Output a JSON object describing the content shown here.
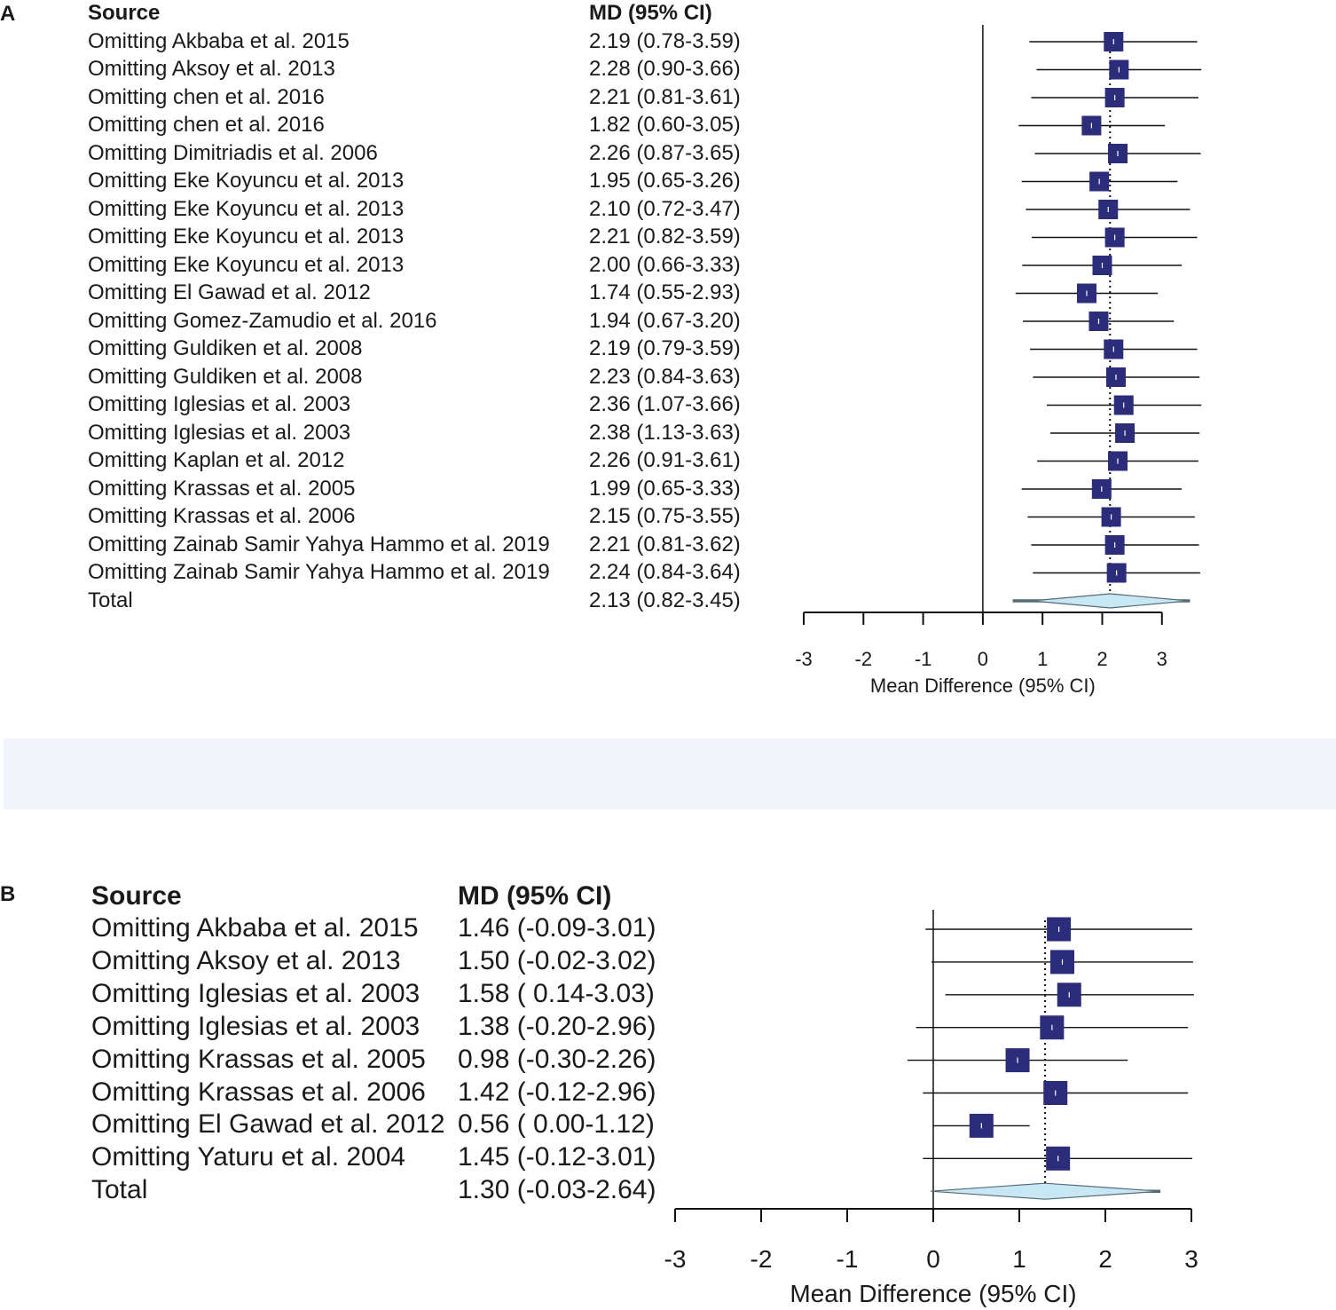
{
  "chart_data": [
    {
      "panel": "A",
      "type": "forest",
      "header_source": "Source",
      "header_md": "MD (95% CI)",
      "rows": [
        {
          "label": "Omitting Akbaba et al.  2015",
          "md_text": "2.19 (0.78-3.59)",
          "md": 2.19,
          "lo": 0.78,
          "hi": 3.59
        },
        {
          "label": "Omitting Aksoy et al.  2013",
          "md_text": "2.28 (0.90-3.66)",
          "md": 2.28,
          "lo": 0.9,
          "hi": 3.66
        },
        {
          "label": "Omitting chen et al.  2016",
          "md_text": "2.21 (0.81-3.61)",
          "md": 2.21,
          "lo": 0.81,
          "hi": 3.61
        },
        {
          "label": "Omitting chen et al.  2016",
          "md_text": "1.82 (0.60-3.05)",
          "md": 1.82,
          "lo": 0.6,
          "hi": 3.05
        },
        {
          "label": "Omitting Dimitriadis et al.  2006",
          "md_text": "2.26 (0.87-3.65)",
          "md": 2.26,
          "lo": 0.87,
          "hi": 3.65
        },
        {
          "label": "Omitting Eke Koyuncu et al. 2013",
          "md_text": "1.95 (0.65-3.26)",
          "md": 1.95,
          "lo": 0.65,
          "hi": 3.26
        },
        {
          "label": "Omitting Eke Koyuncu et al. 2013",
          "md_text": "2.10 (0.72-3.47)",
          "md": 2.1,
          "lo": 0.72,
          "hi": 3.47
        },
        {
          "label": "Omitting Eke Koyuncu et al. 2013",
          "md_text": "2.21 (0.82-3.59)",
          "md": 2.21,
          "lo": 0.82,
          "hi": 3.59
        },
        {
          "label": "Omitting Eke Koyuncu et al. 2013",
          "md_text": "2.00 (0.66-3.33)",
          "md": 2.0,
          "lo": 0.66,
          "hi": 3.33
        },
        {
          "label": "Omitting El Gawad et al. 2012",
          "md_text": "1.74 (0.55-2.93)",
          "md": 1.74,
          "lo": 0.55,
          "hi": 2.93
        },
        {
          "label": "Omitting Gomez-Zamudio et al. 2016",
          "md_text": "1.94 (0.67-3.20)",
          "md": 1.94,
          "lo": 0.67,
          "hi": 3.2
        },
        {
          "label": "Omitting Guldiken et al.  2008",
          "md_text": "2.19 (0.79-3.59)",
          "md": 2.19,
          "lo": 0.79,
          "hi": 3.59
        },
        {
          "label": "Omitting Guldiken et al.  2008",
          "md_text": "2.23 (0.84-3.63)",
          "md": 2.23,
          "lo": 0.84,
          "hi": 3.63
        },
        {
          "label": "Omitting Iglesias et al.  2003",
          "md_text": "2.36 (1.07-3.66)",
          "md": 2.36,
          "lo": 1.07,
          "hi": 3.66
        },
        {
          "label": "Omitting Iglesias et al.  2003",
          "md_text": "2.38 (1.13-3.63)",
          "md": 2.38,
          "lo": 1.13,
          "hi": 3.63
        },
        {
          "label": "Omitting Kaplan et al.  2012",
          "md_text": "2.26 (0.91-3.61)",
          "md": 2.26,
          "lo": 0.91,
          "hi": 3.61
        },
        {
          "label": "Omitting Krassas et al. 2005",
          "md_text": "1.99 (0.65-3.33)",
          "md": 1.99,
          "lo": 0.65,
          "hi": 3.33
        },
        {
          "label": "Omitting Krassas et al.  2006",
          "md_text": "2.15 (0.75-3.55)",
          "md": 2.15,
          "lo": 0.75,
          "hi": 3.55
        },
        {
          "label": "Omitting Zainab Samir Yahya Hammo et al. 2019",
          "md_text": "2.21 (0.81-3.62)",
          "md": 2.21,
          "lo": 0.81,
          "hi": 3.62
        },
        {
          "label": "Omitting Zainab Samir Yahya Hammo et al. 2019",
          "md_text": "2.24 (0.84-3.64)",
          "md": 2.24,
          "lo": 0.84,
          "hi": 3.64
        }
      ],
      "total": {
        "label": "Total",
        "md_text": "2.13 (0.82-3.45)",
        "md": 2.13,
        "lo": 0.82,
        "hi": 3.45,
        "pred_lo": 0.5,
        "pred_hi": 3.47
      },
      "xlim": [
        -3,
        3
      ],
      "ticks": [
        "-3",
        "-2",
        "-1",
        "0",
        "1",
        "2",
        "3"
      ],
      "xlabel": "Mean Difference (95% CI)"
    },
    {
      "panel": "B",
      "type": "forest",
      "header_source": "Source",
      "header_md": "MD (95% CI)",
      "rows": [
        {
          "label": "Omitting Akbaba et al.  2015",
          "md_text": "1.46 (-0.09-3.01)",
          "md": 1.46,
          "lo": -0.09,
          "hi": 3.01
        },
        {
          "label": "Omitting Aksoy et al.  2013",
          "md_text": "1.50 (-0.02-3.02)",
          "md": 1.5,
          "lo": -0.02,
          "hi": 3.02
        },
        {
          "label": "Omitting Iglesias et al.  2003",
          "md_text": "1.58 ( 0.14-3.03)",
          "md": 1.58,
          "lo": 0.14,
          "hi": 3.03
        },
        {
          "label": "Omitting Iglesias et al.  2003",
          "md_text": "1.38 (-0.20-2.96)",
          "md": 1.38,
          "lo": -0.2,
          "hi": 2.96
        },
        {
          "label": "Omitting Krassas et al. 2005",
          "md_text": "0.98 (-0.30-2.26)",
          "md": 0.98,
          "lo": -0.3,
          "hi": 2.26
        },
        {
          "label": "Omitting Krassas et al.  2006",
          "md_text": "1.42 (-0.12-2.96)",
          "md": 1.42,
          "lo": -0.12,
          "hi": 2.96
        },
        {
          "label": "Omitting El Gawad et al. 2012",
          "md_text": "0.56 ( 0.00-1.12)",
          "md": 0.56,
          "lo": 0.0,
          "hi": 1.12
        },
        {
          "label": "Omitting Yaturu et al.  2004",
          "md_text": "1.45 (-0.12-3.01)",
          "md": 1.45,
          "lo": -0.12,
          "hi": 3.01
        }
      ],
      "total": {
        "label": "Total",
        "md_text": "1.30 (-0.03-2.64)",
        "md": 1.3,
        "lo": -0.03,
        "hi": 2.64,
        "pred_lo": 0.15,
        "pred_hi": 2.64
      },
      "xlim": [
        -3,
        3
      ],
      "ticks": [
        "-3",
        "-2",
        "-1",
        "0",
        "1",
        "2",
        "3"
      ],
      "xlabel": "Mean Difference (95% CI)"
    }
  ],
  "colors": {
    "square": "#2b2d7a",
    "diamond": "#c7e7f5",
    "diamond_edge": "#556b75",
    "line": "#111111"
  }
}
